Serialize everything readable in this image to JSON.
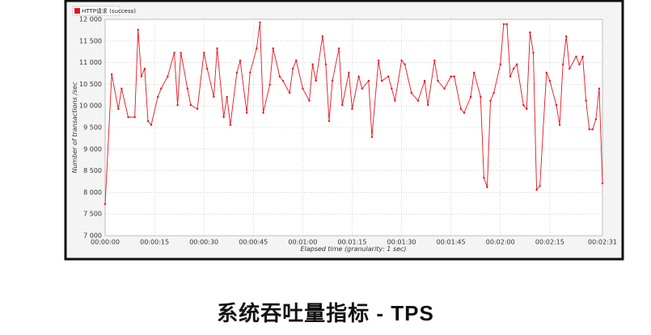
{
  "chart_data": {
    "type": "line",
    "x_label": "Elapsed time (granularity: 1 sec)",
    "y_label": "Number of transactions /sec",
    "x": [
      0,
      2,
      4,
      5,
      7,
      9,
      10,
      11,
      12,
      13,
      14,
      16,
      17,
      19,
      21,
      22,
      23,
      25,
      26,
      28,
      30,
      31,
      33,
      34,
      36,
      37,
      38,
      40,
      41,
      43,
      44,
      46,
      47,
      48,
      50,
      51,
      53,
      54,
      56,
      57,
      58,
      60,
      62,
      63,
      64,
      66,
      67,
      68,
      69,
      71,
      72,
      74,
      75,
      77,
      78,
      80,
      81,
      83,
      84,
      86,
      87,
      88,
      90,
      91,
      93,
      95,
      97,
      98,
      100,
      101,
      103,
      105,
      106,
      108,
      109,
      111,
      112,
      114,
      115,
      116,
      117,
      118,
      120,
      121,
      122,
      123,
      124,
      125,
      127,
      128,
      129,
      130,
      131,
      132,
      134,
      135,
      137,
      138,
      139,
      140,
      141,
      143,
      144,
      145,
      146,
      147,
      148,
      149,
      150,
      151
    ],
    "series": [
      {
        "name": "HTTP请求 (success)",
        "color": "#e8141c",
        "values": [
          7730,
          10730,
          9930,
          10400,
          9740,
          9740,
          11760,
          10680,
          10860,
          9650,
          9560,
          10210,
          10400,
          10680,
          11230,
          10020,
          11230,
          10400,
          10020,
          9930,
          11230,
          10860,
          10210,
          11330,
          9740,
          10210,
          9560,
          10770,
          11050,
          9840,
          10770,
          11330,
          11930,
          9840,
          10490,
          11330,
          10680,
          10580,
          10300,
          10860,
          11050,
          10400,
          10120,
          10960,
          10580,
          11610,
          10960,
          9650,
          10580,
          11330,
          10020,
          10770,
          9930,
          10680,
          10400,
          10580,
          9280,
          11050,
          10580,
          10680,
          10400,
          10120,
          11050,
          10960,
          10300,
          10120,
          10580,
          10020,
          11050,
          10580,
          10400,
          10680,
          10680,
          9930,
          9840,
          10210,
          10770,
          10210,
          8340,
          8120,
          10120,
          10300,
          10960,
          11890,
          11890,
          10680,
          10860,
          10960,
          10020,
          9930,
          11700,
          11230,
          8060,
          8150,
          10770,
          10580,
          10020,
          9560,
          10960,
          11610,
          10860,
          11140,
          10960,
          11140,
          10120,
          9460,
          9460,
          9690,
          10400,
          8210
        ]
      }
    ],
    "xlim": [
      0,
      151
    ],
    "xticks": [
      {
        "value": 0,
        "label": "00:00:00"
      },
      {
        "value": 15,
        "label": "00:00:15"
      },
      {
        "value": 30,
        "label": "00:00:30"
      },
      {
        "value": 45,
        "label": "00:00:45"
      },
      {
        "value": 60,
        "label": "00:01:00"
      },
      {
        "value": 75,
        "label": "00:01:15"
      },
      {
        "value": 90,
        "label": "00:01:30"
      },
      {
        "value": 105,
        "label": "00:01:45"
      },
      {
        "value": 120,
        "label": "00:02:00"
      },
      {
        "value": 135,
        "label": "00:02:15"
      },
      {
        "value": 151,
        "label": "00:02:31"
      }
    ],
    "ylim": [
      7000,
      12000
    ],
    "yticks": [
      {
        "value": 7000,
        "label": "7 000"
      },
      {
        "value": 7500,
        "label": "7 500"
      },
      {
        "value": 8000,
        "label": "8 000"
      },
      {
        "value": 8500,
        "label": "8 500"
      },
      {
        "value": 9000,
        "label": "9 000"
      },
      {
        "value": 9500,
        "label": "9 500"
      },
      {
        "value": 10000,
        "label": "10 000"
      },
      {
        "value": 10500,
        "label": "10 500"
      },
      {
        "value": 11000,
        "label": "11 000"
      },
      {
        "value": 11500,
        "label": "11 500"
      },
      {
        "value": 12000,
        "label": "12 000"
      }
    ],
    "grid": true
  },
  "caption": "系统吞吐量指标 - TPS"
}
